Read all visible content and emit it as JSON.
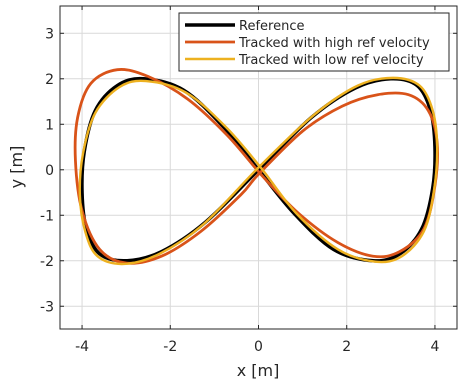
{
  "chart_data": {
    "type": "line",
    "title": "",
    "xlabel": "x [m]",
    "ylabel": "y [m]",
    "xlim": [
      -4.5,
      4.5
    ],
    "ylim": [
      -3.5,
      3.6
    ],
    "xticks": [
      -4,
      -2,
      0,
      2,
      4
    ],
    "yticks": [
      -3,
      -2,
      -1,
      0,
      1,
      2,
      3
    ],
    "xtick_labels": [
      "-4",
      "-2",
      "0",
      "2",
      "4"
    ],
    "ytick_labels": [
      "-3",
      "-2",
      "-1",
      "0",
      "1",
      "2",
      "3"
    ],
    "grid": true,
    "legend_position": "top-right",
    "series": [
      {
        "name": "Reference",
        "color": "#000000",
        "width": 3.5,
        "x": [
          0,
          1.2,
          2.2,
          3.0,
          3.6,
          3.9,
          4.0,
          3.95,
          3.7,
          3.2,
          2.6,
          1.7,
          0.8,
          0,
          -0.8,
          -1.7,
          -2.6,
          -3.2,
          -3.7,
          -3.95,
          -4.0,
          -3.9,
          -3.6,
          -3.0,
          -2.2,
          -1.2,
          0
        ],
        "y": [
          0,
          1.15,
          1.8,
          2.0,
          1.85,
          1.3,
          0.5,
          -0.4,
          -1.3,
          -1.85,
          -2.0,
          -1.75,
          -0.95,
          0,
          0.95,
          1.75,
          2.0,
          1.85,
          1.3,
          0.4,
          -0.5,
          -1.3,
          -1.85,
          -2.0,
          -1.8,
          -1.15,
          0
        ]
      },
      {
        "name": "Tracked with high ref velocity",
        "color": "#d95319",
        "width": 2.8,
        "x": [
          0,
          1.0,
          1.9,
          2.7,
          3.4,
          3.85,
          4.05,
          4.0,
          3.75,
          3.2,
          2.6,
          1.8,
          0.9,
          0.1,
          -0.7,
          -1.6,
          -2.5,
          -3.2,
          -3.8,
          -4.1,
          -4.15,
          -4.0,
          -3.6,
          -3.0,
          -2.2,
          -1.3,
          -0.4,
          0
        ],
        "y": [
          -0.1,
          0.85,
          1.4,
          1.65,
          1.65,
          1.3,
          0.6,
          -0.35,
          -1.3,
          -1.8,
          -1.9,
          -1.6,
          -0.95,
          -0.15,
          0.75,
          1.55,
          2.05,
          2.2,
          1.9,
          1.15,
          0.2,
          -0.9,
          -1.75,
          -2.05,
          -1.9,
          -1.35,
          -0.55,
          -0.1
        ]
      },
      {
        "name": "Tracked with low ref velocity",
        "color": "#edb120",
        "width": 2.4,
        "x": [
          0,
          1.25,
          2.25,
          3.05,
          3.65,
          3.95,
          4.05,
          3.98,
          3.75,
          3.25,
          2.65,
          1.8,
          0.85,
          0.05,
          -0.75,
          -1.65,
          -2.55,
          -3.15,
          -3.7,
          -3.98,
          -4.05,
          -3.93,
          -3.65,
          -3.05,
          -2.25,
          -1.25,
          0
        ],
        "y": [
          0.05,
          1.2,
          1.85,
          2.02,
          1.85,
          1.3,
          0.5,
          -0.45,
          -1.35,
          -1.9,
          -2.02,
          -1.75,
          -0.95,
          0.05,
          0.95,
          1.7,
          1.95,
          1.82,
          1.25,
          0.35,
          -0.55,
          -1.35,
          -1.9,
          -2.07,
          -1.85,
          -1.2,
          0.05
        ]
      }
    ]
  }
}
